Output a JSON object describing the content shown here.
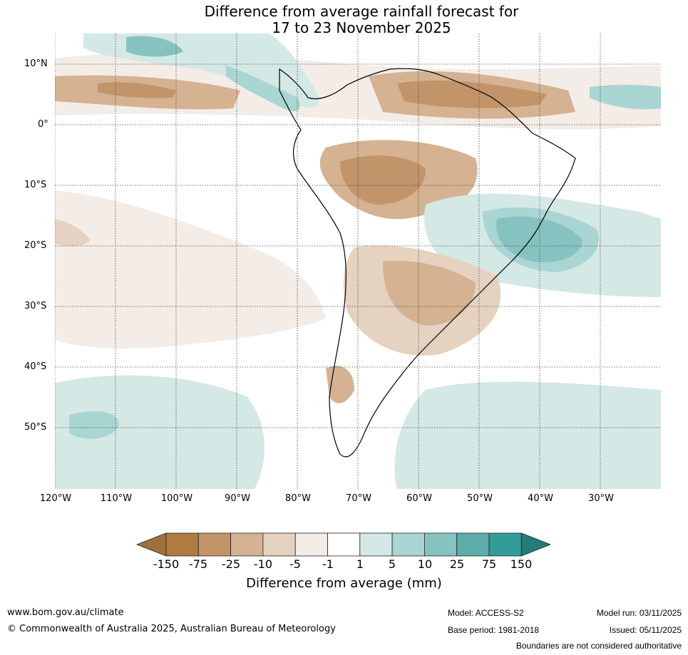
{
  "title": {
    "line1": "Difference from average rainfall forecast for",
    "line2": "17 to 23 November 2025"
  },
  "axes": {
    "lat_labels": [
      "10°N",
      "0°",
      "10°S",
      "20°S",
      "30°S",
      "40°S",
      "50°S"
    ],
    "lon_labels": [
      "120°W",
      "110°W",
      "100°W",
      "90°W",
      "80°W",
      "70°W",
      "60°W",
      "50°W",
      "40°W",
      "30°W"
    ]
  },
  "colorbar": {
    "title": "Difference from average (mm)",
    "ticks": [
      "-150",
      "-75",
      "-25",
      "-10",
      "-5",
      "-1",
      "1",
      "5",
      "10",
      "25",
      "75",
      "150"
    ],
    "colors": [
      "#a0703c",
      "#b07a40",
      "#c2946a",
      "#d4b292",
      "#e6d2c0",
      "#f4ece6",
      "#ffffff",
      "#d4e8e6",
      "#a9d5d3",
      "#86c2c0",
      "#5eadab",
      "#339c98",
      "#247c78"
    ]
  },
  "footer": {
    "website": "www.bom.gov.au/climate",
    "copyright": "© Commonwealth of Australia 2025, Australian Bureau of Meteorology",
    "model": "Model: ACCESS-S2",
    "base_period": "Base period: 1981-2018",
    "model_run": "Model run: 03/11/2025",
    "issued": "Issued: 05/11/2025",
    "disclaimer": "Boundaries are not considered authoritative"
  }
}
